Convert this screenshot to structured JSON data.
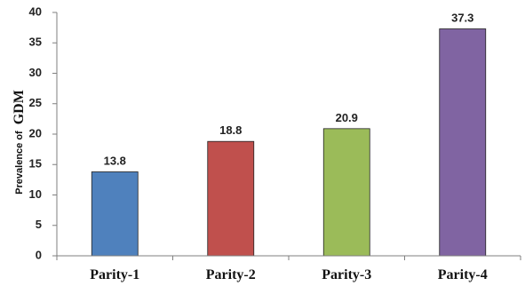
{
  "chart_data": {
    "type": "bar",
    "categories": [
      "Parity-1",
      "Parity-2",
      "Parity-3",
      "Parity-4"
    ],
    "values": [
      13.8,
      18.8,
      20.9,
      37.3
    ],
    "data_labels": [
      "13.8",
      "18.8",
      "20.9",
      "37.3"
    ],
    "colors": [
      "#4f81bd",
      "#c0504d",
      "#9bbb59",
      "#8064a2"
    ],
    "title": "",
    "xlabel": "",
    "ylabel_prefix": "Prevalence of",
    "ylabel_emphasis": "GDM",
    "ylim": [
      0,
      40
    ],
    "yticks": [
      0,
      5,
      10,
      15,
      20,
      25,
      30,
      35,
      40
    ],
    "grid": false,
    "legend": "none"
  }
}
